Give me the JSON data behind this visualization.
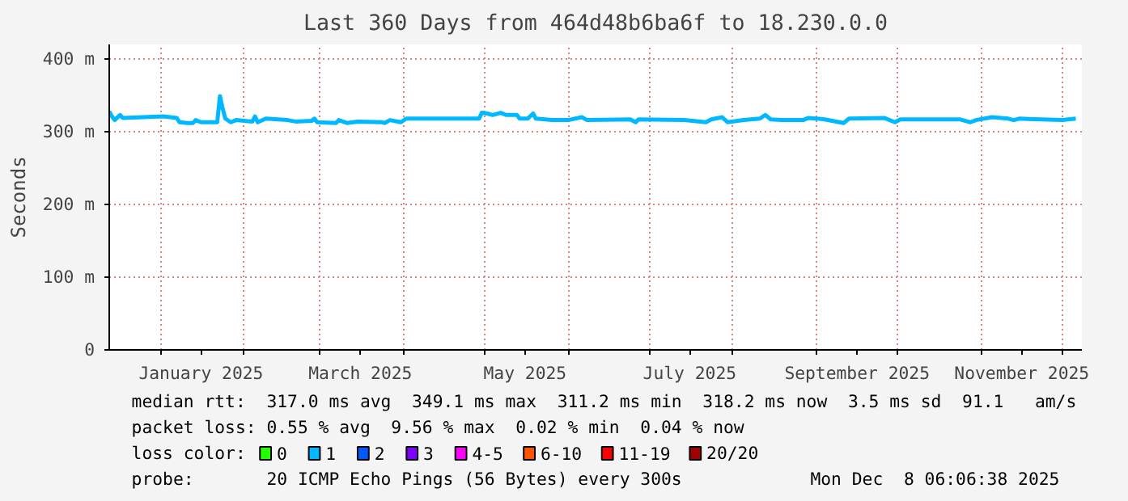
{
  "chart_data": {
    "type": "line",
    "title": "Last 360 Days from 464d48b6ba6f to 18.230.0.0",
    "ylabel": "Seconds",
    "legend_title": "loss color:",
    "legend": "bottom",
    "grid": true,
    "marker": "none",
    "line_style": "solid",
    "xlim": [
      "2024-12-13",
      "2025-12-08T06:06"
    ],
    "xticks": [
      {
        "value": "2025-01-01",
        "label": null
      },
      {
        "value": "2025-01-16",
        "label": "January 2025"
      },
      {
        "value": "2025-02-01",
        "label": null
      },
      {
        "value": "2025-03-01",
        "label": null
      },
      {
        "value": "2025-03-16",
        "label": "March 2025"
      },
      {
        "value": "2025-04-01",
        "label": null
      },
      {
        "value": "2025-05-01",
        "label": null
      },
      {
        "value": "2025-05-16",
        "label": "May 2025"
      },
      {
        "value": "2025-06-01",
        "label": null
      },
      {
        "value": "2025-07-01",
        "label": null
      },
      {
        "value": "2025-07-16",
        "label": "July 2025"
      },
      {
        "value": "2025-08-01",
        "label": null
      },
      {
        "value": "2025-09-01",
        "label": null
      },
      {
        "value": "2025-09-16",
        "label": "September 2025"
      },
      {
        "value": "2025-10-01",
        "label": null
      },
      {
        "value": "2025-11-01",
        "label": null
      },
      {
        "value": "2025-11-16",
        "label": "November 2025"
      },
      {
        "value": "2025-12-01",
        "label": null
      }
    ],
    "ylim": [
      0,
      420
    ],
    "yticks": [
      0,
      {
        "value": 100,
        "label": "100 m"
      },
      {
        "value": 200,
        "label": "200 m"
      },
      {
        "value": 300,
        "label": "300 m"
      },
      {
        "value": 400,
        "label": "400 m"
      }
    ],
    "series": [
      {
        "name": "0",
        "color": "#26ff00"
      },
      {
        "name": "1",
        "color": "#00b8ff",
        "x": [
          "2024-12-13",
          "2024-12-14",
          "2024-12-15",
          "2024-12-17",
          "2024-12-18",
          "2025-01-02",
          "2025-01-07",
          "2025-01-08",
          "2025-01-11",
          "2025-01-13",
          "2025-01-14",
          "2025-01-16",
          "2025-01-22",
          "2025-01-23",
          "2025-01-24",
          "2025-01-25",
          "2025-01-27",
          "2025-01-29",
          "2025-02-04",
          "2025-02-05",
          "2025-02-06",
          "2025-02-09",
          "2025-02-17",
          "2025-02-20",
          "2025-02-26",
          "2025-02-27",
          "2025-02-28",
          "2025-03-07",
          "2025-03-08",
          "2025-03-11",
          "2025-03-15",
          "2025-03-24",
          "2025-03-25",
          "2025-03-27",
          "2025-03-31",
          "2025-04-02",
          "2025-04-29",
          "2025-04-30",
          "2025-05-02",
          "2025-05-04",
          "2025-05-07",
          "2025-05-09",
          "2025-05-13",
          "2025-05-14",
          "2025-05-17",
          "2025-05-19",
          "2025-05-20",
          "2025-05-26",
          "2025-06-01",
          "2025-06-06",
          "2025-06-08",
          "2025-06-24",
          "2025-06-26",
          "2025-06-27",
          "2025-07-14",
          "2025-07-22",
          "2025-07-24",
          "2025-07-28",
          "2025-07-30",
          "2025-08-05",
          "2025-08-11",
          "2025-08-13",
          "2025-08-15",
          "2025-08-19",
          "2025-08-27",
          "2025-08-29",
          "2025-09-04",
          "2025-09-11",
          "2025-09-13",
          "2025-09-26",
          "2025-09-30",
          "2025-10-02",
          "2025-10-12",
          "2025-10-24",
          "2025-10-28",
          "2025-10-30",
          "2025-11-05",
          "2025-11-11",
          "2025-11-13",
          "2025-11-15",
          "2025-12-01",
          "2025-12-06"
        ],
        "values": [
          328,
          321,
          316,
          323,
          319,
          321,
          319,
          313,
          312,
          312,
          316,
          313,
          313,
          349,
          332,
          318,
          313,
          316,
          314,
          321,
          313,
          318,
          316,
          314,
          315,
          318,
          313,
          312,
          316,
          312,
          314,
          313,
          312,
          316,
          313,
          318,
          318,
          326,
          325,
          323,
          326,
          323,
          323,
          318,
          318,
          325,
          318,
          316,
          316,
          320,
          316,
          317,
          313,
          317,
          316,
          313,
          317,
          320,
          313,
          316,
          318,
          323,
          317,
          316,
          316,
          319,
          317,
          312,
          318,
          319,
          313,
          317,
          317,
          317,
          313,
          316,
          320,
          318,
          316,
          318,
          316,
          318
        ]
      },
      {
        "name": "2",
        "color": "#0059ff"
      },
      {
        "name": "3",
        "color": "#7e00ff"
      },
      {
        "name": "4-5",
        "color": "#ff00ff"
      },
      {
        "name": "6-10",
        "color": "#ff5500"
      },
      {
        "name": "11-19",
        "color": "#ff0000"
      },
      {
        "name": "20/20",
        "color": "#a10000"
      }
    ],
    "annotations": [
      "median rtt:  317.0 ms avg  349.1 ms max  311.2 ms min  318.2 ms now  3.5 ms sd  91.1   am/s",
      "packet loss: 0.55 % avg  9.56 % max  0.02 % min  0.04 % now",
      "probe:       20 ICMP Echo Pings (56 Bytes) every 300s",
      "Mon Dec  8 06:06:38 2025"
    ]
  }
}
